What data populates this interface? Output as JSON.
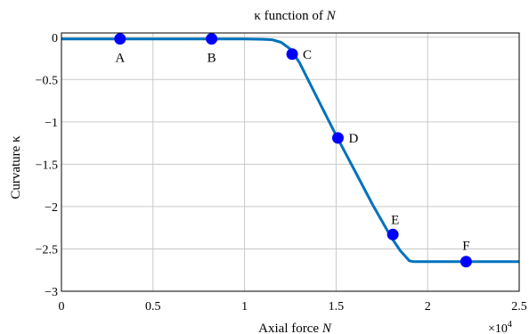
{
  "chart_data": {
    "type": "line",
    "title_prefix": "κ function of ",
    "title_var": "N",
    "xlabel_prefix": "Axial force ",
    "xlabel_var": "N",
    "ylabel": "Curvature κ",
    "x_multiplier_base": "×10",
    "x_multiplier_exp": "4",
    "xlim": [
      0,
      2.5
    ],
    "ylim": [
      -3,
      0.05
    ],
    "grid": true,
    "line_color": "#0072BD",
    "marker_color": "#0000FF",
    "x_ticks": [
      0,
      0.5,
      1,
      1.5,
      2,
      2.5
    ],
    "x_tick_labels": [
      "0",
      "0.5",
      "1",
      "1.5",
      "2",
      "2.5"
    ],
    "y_ticks": [
      0,
      -0.5,
      -1,
      -1.5,
      -2,
      -2.5,
      -3
    ],
    "y_tick_labels": [
      "0",
      "−0.5",
      "−1",
      "−1.5",
      "−2",
      "−2.5",
      "−3"
    ],
    "series": [
      {
        "x": [
          0,
          0.3,
          0.8,
          1.0,
          1.1,
          1.15,
          1.2,
          1.25,
          1.3,
          1.4,
          1.5,
          1.6,
          1.7,
          1.8,
          1.85,
          1.9,
          1.92,
          2.0,
          2.2,
          2.5
        ],
        "y": [
          -0.02,
          -0.02,
          -0.02,
          -0.02,
          -0.025,
          -0.03,
          -0.06,
          -0.14,
          -0.3,
          -0.73,
          -1.16,
          -1.57,
          -1.98,
          -2.36,
          -2.52,
          -2.64,
          -2.65,
          -2.65,
          -2.65,
          -2.65
        ]
      }
    ],
    "points": [
      {
        "label": "A",
        "x": 0.32,
        "y": -0.02,
        "label_pos": "below"
      },
      {
        "label": "B",
        "x": 0.82,
        "y": -0.02,
        "label_pos": "below"
      },
      {
        "label": "C",
        "x": 1.26,
        "y": -0.2,
        "label_pos": "right"
      },
      {
        "label": "D",
        "x": 1.51,
        "y": -1.19,
        "label_pos": "right"
      },
      {
        "label": "E",
        "x": 1.81,
        "y": -2.33,
        "label_pos": "above-right"
      },
      {
        "label": "F",
        "x": 2.21,
        "y": -2.65,
        "label_pos": "above"
      }
    ]
  }
}
